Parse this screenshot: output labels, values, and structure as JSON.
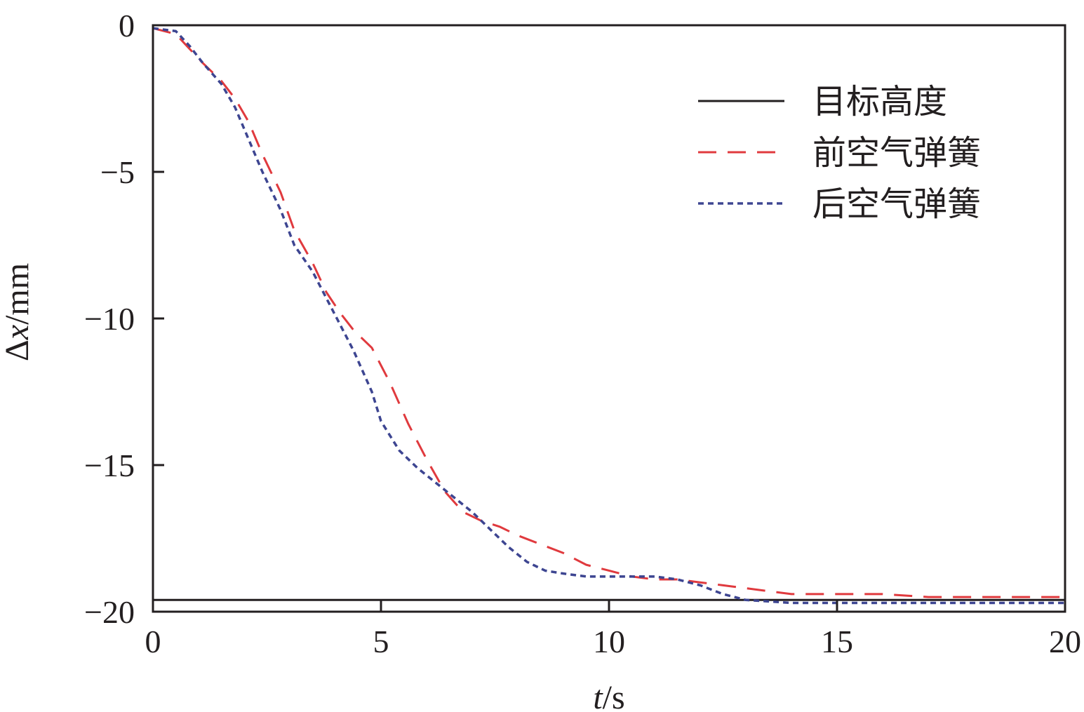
{
  "chart_data": {
    "type": "line",
    "xlabel": {
      "var": "t",
      "unit": "/s"
    },
    "ylabel": {
      "var": "Δx",
      "italic_part": "x",
      "unit": "/mm"
    },
    "xlim": [
      0,
      20
    ],
    "ylim": [
      -20,
      0
    ],
    "xticks": [
      0,
      5,
      10,
      15,
      20
    ],
    "yticks": [
      0,
      -5,
      -10,
      -15,
      -20
    ],
    "xtick_labels": [
      "0",
      "5",
      "10",
      "15",
      "20"
    ],
    "ytick_labels": [
      "0",
      "−5",
      "−10",
      "−15",
      "−20"
    ],
    "grid": false,
    "legend_position": "top-right",
    "series": [
      {
        "name": "目标高度",
        "style": "solid",
        "color": "#231f20",
        "x": [
          0,
          20
        ],
        "y": [
          -19.6,
          -19.6
        ]
      },
      {
        "name": "前空气弹簧",
        "style": "dashed",
        "color": "#e03a3e",
        "x": [
          0,
          0.5,
          0.8,
          1.1,
          1.5,
          1.8,
          2.1,
          2.4,
          2.8,
          3.1,
          3.5,
          3.8,
          4.1,
          4.4,
          4.8,
          5.2,
          5.6,
          6.0,
          6.4,
          6.8,
          7.2,
          7.6,
          8.0,
          8.5,
          9.0,
          9.5,
          10.0,
          10.5,
          11.0,
          11.5,
          12.0,
          12.5,
          13.0,
          13.5,
          14.0,
          15.0,
          16.0,
          17.0,
          18.0,
          19.0,
          20.0
        ],
        "y": [
          -0.1,
          -0.3,
          -0.8,
          -1.3,
          -1.9,
          -2.5,
          -3.3,
          -4.4,
          -5.7,
          -7.0,
          -8.1,
          -9.1,
          -9.8,
          -10.4,
          -11.0,
          -12.2,
          -13.6,
          -14.8,
          -15.9,
          -16.6,
          -16.9,
          -17.1,
          -17.4,
          -17.7,
          -18.0,
          -18.4,
          -18.6,
          -18.8,
          -18.9,
          -18.9,
          -19.0,
          -19.1,
          -19.2,
          -19.3,
          -19.4,
          -19.4,
          -19.4,
          -19.5,
          -19.5,
          -19.5,
          -19.5
        ]
      },
      {
        "name": "后空气弹簧",
        "style": "dotted",
        "color": "#3d4591",
        "x": [
          0,
          0.5,
          0.8,
          1.1,
          1.5,
          1.8,
          2.1,
          2.4,
          2.8,
          3.1,
          3.5,
          3.8,
          4.1,
          4.4,
          4.8,
          5.0,
          5.4,
          5.8,
          6.2,
          6.6,
          7.0,
          7.4,
          7.8,
          8.2,
          8.6,
          9.0,
          9.5,
          10.0,
          10.5,
          11.0,
          11.5,
          12.0,
          12.5,
          13.0,
          14.0,
          15.0,
          16.0,
          17.0,
          18.0,
          20.0
        ],
        "y": [
          -0.1,
          -0.2,
          -0.7,
          -1.3,
          -2.0,
          -2.8,
          -3.9,
          -5.0,
          -6.3,
          -7.5,
          -8.4,
          -9.3,
          -10.2,
          -11.1,
          -12.5,
          -13.5,
          -14.5,
          -15.1,
          -15.6,
          -16.1,
          -16.6,
          -17.2,
          -17.8,
          -18.3,
          -18.6,
          -18.7,
          -18.8,
          -18.8,
          -18.8,
          -18.8,
          -18.9,
          -19.1,
          -19.4,
          -19.6,
          -19.7,
          -19.7,
          -19.7,
          -19.7,
          -19.7,
          -19.7
        ]
      }
    ]
  }
}
